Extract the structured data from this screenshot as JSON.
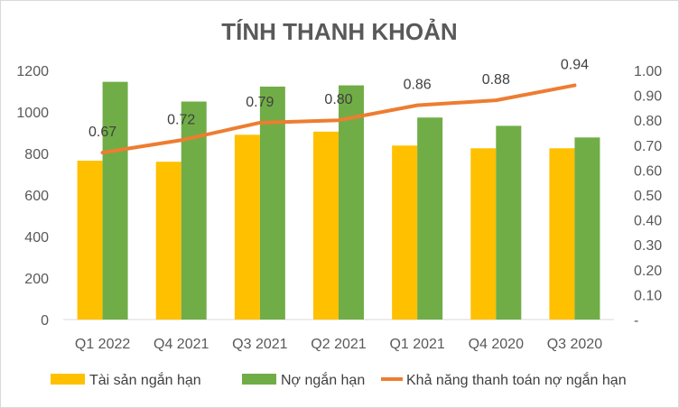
{
  "chart_data": {
    "type": "bar",
    "title": "TÍNH THANH KHOẢN",
    "categories": [
      "Q1 2022",
      "Q4 2021",
      "Q3 2021",
      "Q2 2021",
      "Q1 2021",
      "Q4 2020",
      "Q3 2020"
    ],
    "series": [
      {
        "name": "Tài sản ngắn hạn",
        "type": "bar",
        "axis": "left",
        "color": "#FFC000",
        "values": [
          765,
          760,
          890,
          905,
          838,
          825,
          825
        ]
      },
      {
        "name": "Nợ ngắn hạn",
        "type": "bar",
        "axis": "left",
        "color": "#70AD47",
        "values": [
          1145,
          1050,
          1122,
          1128,
          973,
          933,
          877
        ]
      },
      {
        "name": "Khả năng thanh toán nợ ngắn hạn",
        "type": "line",
        "axis": "right",
        "color": "#ED7D31",
        "values": [
          0.67,
          0.72,
          0.79,
          0.8,
          0.86,
          0.88,
          0.94
        ],
        "labels": [
          "0.67",
          "0.72",
          "0.79",
          "0.80",
          "0.86",
          "0.88",
          "0.94"
        ]
      }
    ],
    "left_axis": {
      "min": 0,
      "max": 1200,
      "ticks": [
        0,
        200,
        400,
        600,
        800,
        1000,
        1200
      ],
      "tick_labels": [
        "0",
        "200",
        "400",
        "600",
        "800",
        "1000",
        "1200"
      ]
    },
    "right_axis": {
      "min": 0,
      "max": 1.0,
      "ticks": [
        0,
        0.1,
        0.2,
        0.3,
        0.4,
        0.5,
        0.6,
        0.7,
        0.8,
        0.9,
        1.0
      ],
      "tick_labels": [
        "-",
        "0.10",
        "0.20",
        "0.30",
        "0.40",
        "0.50",
        "0.60",
        "0.70",
        "0.80",
        "0.90",
        "1.00"
      ]
    },
    "grid": false,
    "legend_position": "bottom"
  }
}
